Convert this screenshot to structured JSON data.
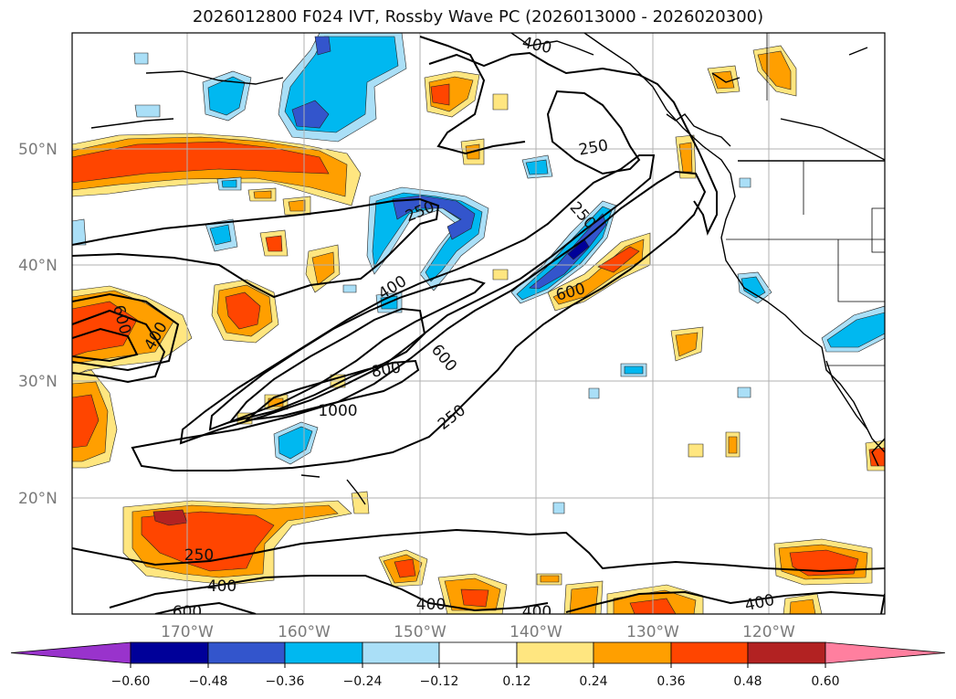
{
  "title": "2026012800 F024 IVT, Rossby Wave PC (2026013000 - 2026020300)",
  "latitude_labels": [
    "50°N",
    "40°N",
    "30°N",
    "20°N"
  ],
  "longitude_labels": [
    "170°W",
    "160°W",
    "150°W",
    "140°W",
    "130°W",
    "120°W"
  ],
  "ivt_contour_levels": [
    "250",
    "400",
    "600",
    "800",
    "1000"
  ],
  "contour_labels": [
    "400",
    "250",
    "250",
    "250",
    "400",
    "600",
    "600",
    "600",
    "400",
    "800",
    "1000",
    "250",
    "250",
    "400",
    "600",
    "400",
    "400",
    "400"
  ],
  "colorbar": {
    "ticks": [
      "−0.60",
      "−0.48",
      "−0.36",
      "−0.24",
      "−0.12",
      "0.12",
      "0.24",
      "0.36",
      "0.48",
      "0.60"
    ],
    "colors": [
      "#9933cc",
      "#000099",
      "#3355cc",
      "#00b8f0",
      "#aadff7",
      "#ffffff",
      "#ffe680",
      "#ff9f00",
      "#ff4500",
      "#b22222",
      "#ff7f9f"
    ]
  }
}
